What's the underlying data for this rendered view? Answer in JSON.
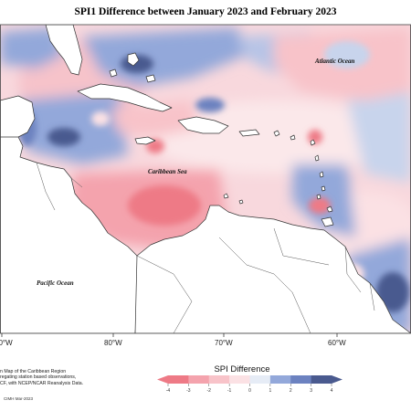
{
  "title": "SPI1 Difference between January 2023 and February 2023",
  "labels": {
    "atlantic": "Atlantic Ocean",
    "caribbean": "Caribbean Sea",
    "pacific": "Pacific Ocean"
  },
  "longitudes": [
    "80°W",
    "80°W",
    "70°W",
    "60°W"
  ],
  "credits": {
    "line1": "n Map of the Caribbean Region",
    "line2": "regating station based observations,",
    "line3": "CF, with NCEP/NCAR Reanalysis Data."
  },
  "footer": "CIMH Mar-2023",
  "legend": {
    "title": "SPI Difference",
    "ticks": [
      "-4",
      "-3",
      "-2",
      "-1",
      "0",
      "1",
      "2",
      "3",
      "4"
    ],
    "colors": [
      "#ee7a86",
      "#f4a3ad",
      "#f8c3c9",
      "#fbe1e4",
      "#ffffff",
      "#c8d4ec",
      "#93a8da",
      "#6c82c0",
      "#4a5a8f"
    ]
  },
  "colors": {
    "land": "#ffffff",
    "coast": "#333333",
    "ocean_base": "#f8d8dd",
    "dry_strong": "#ee7a86",
    "dry": "#f4a3ad",
    "wet": "#93a8da",
    "wet_strong": "#4a5a8f"
  }
}
